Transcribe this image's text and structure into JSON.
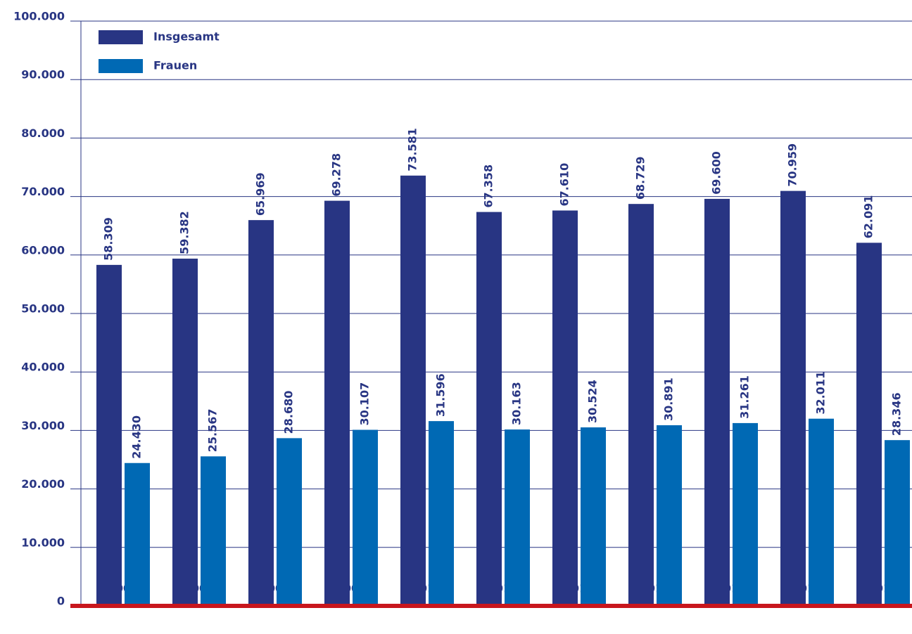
{
  "chart_data": {
    "type": "bar",
    "categories": [
      "2006",
      "2007",
      "2008",
      "2009",
      "2010",
      "2011",
      "2012",
      "2013",
      "2014",
      "2015",
      "2016"
    ],
    "series": [
      {
        "name": "Insgesamt",
        "color": "#283583",
        "values": [
          58309,
          59382,
          65969,
          69278,
          73581,
          67358,
          67610,
          68729,
          69600,
          70959,
          62091
        ],
        "value_labels": [
          "58.309",
          "59.382",
          "65.969",
          "69.278",
          "73.581",
          "67.358",
          "67.610",
          "68.729",
          "69.600",
          "70.959",
          "62.091"
        ]
      },
      {
        "name": "Frauen",
        "color": "#0069b4",
        "values": [
          24430,
          25567,
          28680,
          30107,
          31596,
          30163,
          30524,
          30891,
          31261,
          32011,
          28346
        ],
        "value_labels": [
          "24.430",
          "25.567",
          "28.680",
          "30.107",
          "31.596",
          "30.163",
          "30.524",
          "30.891",
          "31.261",
          "32.011",
          "28.346"
        ]
      }
    ],
    "ylim": [
      0,
      100000
    ],
    "yticks": [
      0,
      {
        "value": 10000,
        "label": "10.000"
      },
      {
        "value": 20000,
        "label": "20.000"
      },
      {
        "value": 30000,
        "label": "30.000"
      },
      {
        "value": 40000,
        "label": "40.000"
      },
      {
        "value": 50000,
        "label": "50.000"
      },
      {
        "value": 60000,
        "label": "60.000"
      },
      {
        "value": 70000,
        "label": "70.000"
      },
      {
        "value": 80000,
        "label": "80.000"
      },
      {
        "value": 90000,
        "label": "90.000"
      },
      {
        "value": 100000,
        "label": "100.000"
      }
    ],
    "grid": true,
    "legend": "upper left",
    "baseline_color": "#c8161d"
  }
}
